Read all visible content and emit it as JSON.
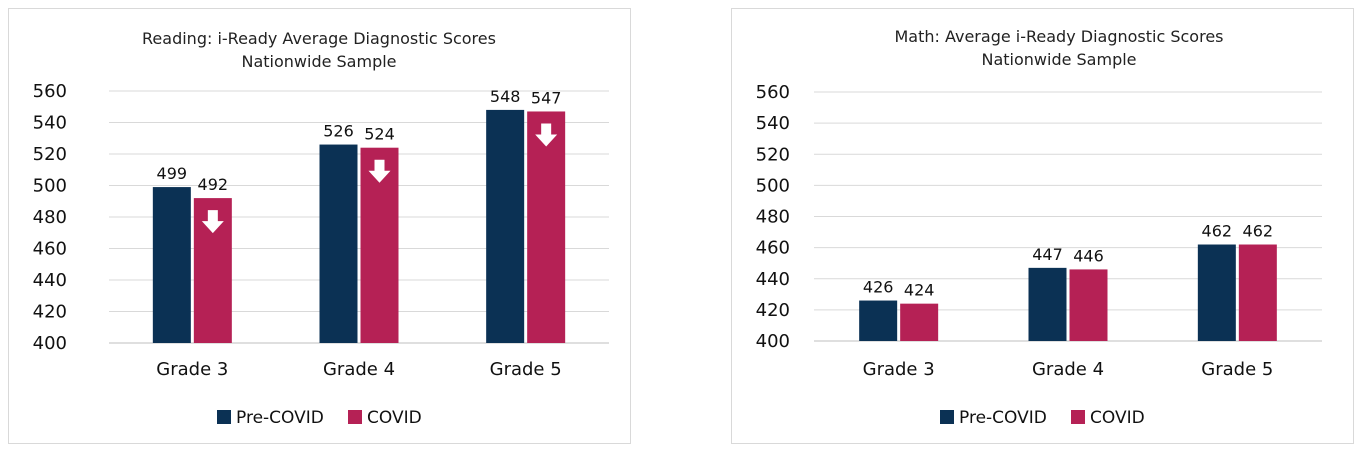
{
  "colors": {
    "pre_covid": "#0b3154",
    "covid": "#b52155",
    "arrow": "#ffffff"
  },
  "chart_data": [
    {
      "type": "bar",
      "title": "Reading: i-Ready Average Diagnostic Scores",
      "subtitle": "Nationwide Sample",
      "categories": [
        "Grade 3",
        "Grade 4",
        "Grade 5"
      ],
      "series": [
        {
          "name": "Pre-COVID",
          "values": [
            499,
            526,
            548
          ]
        },
        {
          "name": "COVID",
          "values": [
            492,
            524,
            547
          ]
        }
      ],
      "ylim": [
        400,
        560
      ],
      "yticks": [
        400,
        420,
        440,
        460,
        480,
        500,
        520,
        540,
        560
      ],
      "grid": true,
      "legend": "bottom",
      "annotations": [
        "down-arrow-icon",
        "down-arrow-icon",
        "down-arrow-icon"
      ]
    },
    {
      "type": "bar",
      "title": "Math: Average i-Ready Diagnostic Scores",
      "subtitle": "Nationwide Sample",
      "categories": [
        "Grade 3",
        "Grade 4",
        "Grade 5"
      ],
      "series": [
        {
          "name": "Pre-COVID",
          "values": [
            426,
            447,
            462
          ]
        },
        {
          "name": "COVID",
          "values": [
            424,
            446,
            462
          ]
        }
      ],
      "ylim": [
        400,
        560
      ],
      "yticks": [
        400,
        420,
        440,
        460,
        480,
        500,
        520,
        540,
        560
      ],
      "grid": true,
      "legend": "bottom"
    }
  ]
}
